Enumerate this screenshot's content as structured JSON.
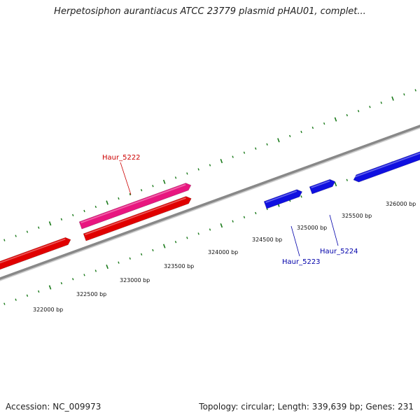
{
  "title": "Herpetosiphon aurantiacus ATCC 23779 plasmid pHAU01, complet...",
  "footer": {
    "accession": "Accession: NC_009973",
    "stats": "Topology: circular; Length: 339,639 bp; Genes: 231"
  },
  "scale": {
    "unit": "bp",
    "tick_labels": [
      "322000 bp",
      "322500 bp",
      "323000 bp",
      "323500 bp",
      "324000 bp",
      "324500 bp",
      "325000 bp",
      "325500 bp",
      "326000 bp"
    ]
  },
  "colors": {
    "backbone": "#888888",
    "tick": "#1a7a1a",
    "gene_forward": "#e8167f",
    "gene_reverse_red": "#e00000",
    "gene_reverse_blue": "#1010e0",
    "label_red": "#cc0000",
    "label_blue": "#0000aa"
  },
  "genes": [
    {
      "id": "red-left",
      "label": "",
      "strand": "reverse",
      "color": "gene_reverse_red"
    },
    {
      "id": "red-mid",
      "label": "",
      "strand": "reverse",
      "color": "gene_reverse_red"
    },
    {
      "id": "pink",
      "label": "Haur_5222",
      "strand": "forward",
      "color": "gene_forward"
    },
    {
      "id": "blue-1",
      "label": "Haur_5223",
      "strand": "forward",
      "color": "gene_reverse_blue"
    },
    {
      "id": "blue-2",
      "label": "Haur_5224",
      "strand": "forward",
      "color": "gene_reverse_blue"
    },
    {
      "id": "blue-3",
      "label": "",
      "strand": "forward",
      "color": "gene_reverse_blue"
    }
  ]
}
